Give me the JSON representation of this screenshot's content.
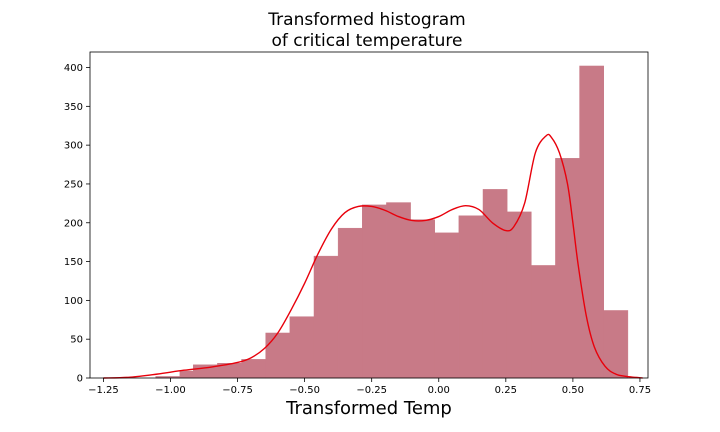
{
  "chart_data": {
    "type": "bar",
    "title_lines": [
      "Transformed histogram",
      "of critical temperature"
    ],
    "xlabel": "Transformed Temp",
    "ylabel": "",
    "xlim": [
      -1.3,
      0.78
    ],
    "ylim": [
      0,
      420
    ],
    "xticks": [
      -1.25,
      -1.0,
      -0.75,
      -0.5,
      -0.25,
      0.0,
      0.25,
      0.5,
      0.75
    ],
    "xtick_labels": [
      "−1.25",
      "−1.00",
      "−0.75",
      "−0.50",
      "−0.25",
      "0.00",
      "0.25",
      "0.50",
      "0.75"
    ],
    "yticks": [
      0,
      50,
      100,
      150,
      200,
      250,
      300,
      350,
      400
    ],
    "ytick_labels": [
      "0",
      "50",
      "100",
      "150",
      "200",
      "250",
      "300",
      "350",
      "400"
    ],
    "bar_color": "#c87a87",
    "kde_color": "#e8000b",
    "bins": [
      {
        "x0": -1.055,
        "x1": -0.965,
        "count": 2
      },
      {
        "x0": -0.965,
        "x1": -0.915,
        "count": 9
      },
      {
        "x0": -0.915,
        "x1": -0.825,
        "count": 17
      },
      {
        "x0": -0.825,
        "x1": -0.735,
        "count": 19
      },
      {
        "x0": -0.735,
        "x1": -0.645,
        "count": 24
      },
      {
        "x0": -0.645,
        "x1": -0.555,
        "count": 58
      },
      {
        "x0": -0.555,
        "x1": -0.465,
        "count": 79
      },
      {
        "x0": -0.465,
        "x1": -0.375,
        "count": 157
      },
      {
        "x0": -0.375,
        "x1": -0.285,
        "count": 193
      },
      {
        "x0": -0.285,
        "x1": -0.195,
        "count": 223
      },
      {
        "x0": -0.195,
        "x1": -0.105,
        "count": 226
      },
      {
        "x0": -0.105,
        "x1": -0.015,
        "count": 204
      },
      {
        "x0": -0.015,
        "x1": 0.075,
        "count": 187
      },
      {
        "x0": 0.075,
        "x1": 0.165,
        "count": 209
      },
      {
        "x0": 0.165,
        "x1": 0.255,
        "count": 243
      },
      {
        "x0": 0.255,
        "x1": 0.345,
        "count": 214
      },
      {
        "x0": 0.345,
        "x1": 0.435,
        "count": 145
      },
      {
        "x0": 0.435,
        "x1": 0.525,
        "count": 283
      },
      {
        "x0": 0.525,
        "x1": 0.615,
        "count": 402
      },
      {
        "x0": 0.615,
        "x1": 0.705,
        "count": 87
      }
    ],
    "kde_points": [
      [
        -1.25,
        0
      ],
      [
        -1.15,
        1
      ],
      [
        -1.05,
        5
      ],
      [
        -0.95,
        10
      ],
      [
        -0.85,
        14
      ],
      [
        -0.75,
        20
      ],
      [
        -0.7,
        26
      ],
      [
        -0.65,
        38
      ],
      [
        -0.6,
        58
      ],
      [
        -0.55,
        88
      ],
      [
        -0.5,
        122
      ],
      [
        -0.45,
        160
      ],
      [
        -0.4,
        192
      ],
      [
        -0.35,
        213
      ],
      [
        -0.3,
        221
      ],
      [
        -0.25,
        221
      ],
      [
        -0.2,
        216
      ],
      [
        -0.15,
        208
      ],
      [
        -0.1,
        203
      ],
      [
        -0.05,
        203
      ],
      [
        0.0,
        208
      ],
      [
        0.05,
        217
      ],
      [
        0.1,
        222
      ],
      [
        0.15,
        217
      ],
      [
        0.2,
        200
      ],
      [
        0.25,
        190
      ],
      [
        0.28,
        195
      ],
      [
        0.32,
        225
      ],
      [
        0.36,
        290
      ],
      [
        0.4,
        312
      ],
      [
        0.42,
        310
      ],
      [
        0.45,
        290
      ],
      [
        0.48,
        250
      ],
      [
        0.5,
        200
      ],
      [
        0.52,
        145
      ],
      [
        0.55,
        80
      ],
      [
        0.58,
        40
      ],
      [
        0.62,
        15
      ],
      [
        0.66,
        5
      ],
      [
        0.7,
        2
      ],
      [
        0.76,
        0
      ]
    ]
  }
}
